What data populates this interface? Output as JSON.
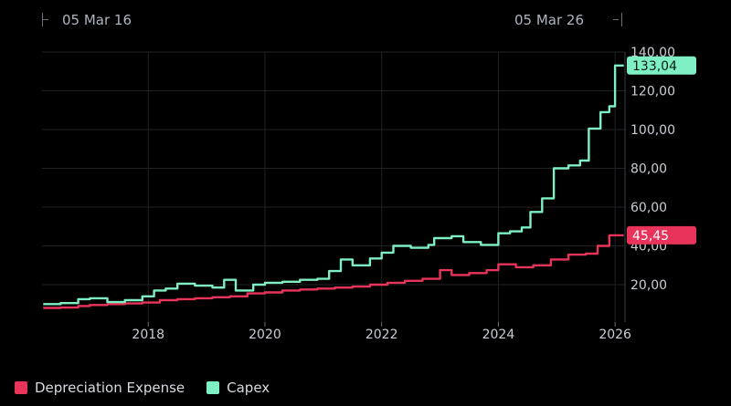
{
  "range": {
    "start_label": "05 Mar 16",
    "end_label": "05 Mar 26"
  },
  "colors": {
    "depreciation": "#e8345a",
    "capex": "#7ef0c4",
    "grid": "#1f2226",
    "axis_text": "#c9cdd4",
    "background": "#000000"
  },
  "chart_data": {
    "type": "line",
    "title": "",
    "xlabel": "",
    "ylabel": "",
    "x_ticks": [
      "2018",
      "2020",
      "2022",
      "2024",
      "2026"
    ],
    "y_ticks": [
      "20,00",
      "40,00",
      "60,00",
      "80,00",
      "100,00",
      "120,00",
      "140,00"
    ],
    "ylim": [
      0,
      140
    ],
    "xlim": [
      2016.18,
      2026.17
    ],
    "grid": true,
    "legend_position": "bottom-left",
    "series": [
      {
        "name": "Depreciation Expense",
        "last_label": "45,45",
        "points": [
          [
            2016.2,
            8.0
          ],
          [
            2016.5,
            8.2
          ],
          [
            2016.8,
            9.0
          ],
          [
            2017.0,
            9.5
          ],
          [
            2017.3,
            10.0
          ],
          [
            2017.6,
            10.3
          ],
          [
            2017.9,
            10.8
          ],
          [
            2018.2,
            12.0
          ],
          [
            2018.5,
            12.5
          ],
          [
            2018.8,
            13.0
          ],
          [
            2019.1,
            13.5
          ],
          [
            2019.4,
            14.0
          ],
          [
            2019.7,
            15.5
          ],
          [
            2020.0,
            16.0
          ],
          [
            2020.3,
            17.0
          ],
          [
            2020.6,
            17.5
          ],
          [
            2020.9,
            18.0
          ],
          [
            2021.2,
            18.5
          ],
          [
            2021.5,
            19.0
          ],
          [
            2021.8,
            20.0
          ],
          [
            2022.1,
            21.0
          ],
          [
            2022.4,
            22.0
          ],
          [
            2022.7,
            23.0
          ],
          [
            2023.0,
            27.5
          ],
          [
            2023.2,
            25.0
          ],
          [
            2023.5,
            26.0
          ],
          [
            2023.8,
            27.5
          ],
          [
            2024.0,
            30.5
          ],
          [
            2024.3,
            29.0
          ],
          [
            2024.6,
            30.0
          ],
          [
            2024.9,
            33.0
          ],
          [
            2025.2,
            35.5
          ],
          [
            2025.5,
            36.0
          ],
          [
            2025.7,
            40.0
          ],
          [
            2025.9,
            45.45
          ],
          [
            2026.15,
            45.45
          ]
        ]
      },
      {
        "name": "Capex",
        "last_label": "133,04",
        "points": [
          [
            2016.2,
            10.0
          ],
          [
            2016.5,
            10.5
          ],
          [
            2016.8,
            12.5
          ],
          [
            2017.0,
            13.0
          ],
          [
            2017.3,
            11.0
          ],
          [
            2017.6,
            12.0
          ],
          [
            2017.9,
            14.0
          ],
          [
            2018.1,
            17.0
          ],
          [
            2018.3,
            18.0
          ],
          [
            2018.5,
            20.5
          ],
          [
            2018.8,
            19.5
          ],
          [
            2019.1,
            18.5
          ],
          [
            2019.3,
            22.5
          ],
          [
            2019.5,
            17.0
          ],
          [
            2019.8,
            20.0
          ],
          [
            2020.0,
            21.0
          ],
          [
            2020.3,
            21.5
          ],
          [
            2020.6,
            22.5
          ],
          [
            2020.9,
            23.0
          ],
          [
            2021.1,
            27.0
          ],
          [
            2021.3,
            33.0
          ],
          [
            2021.5,
            30.0
          ],
          [
            2021.8,
            33.5
          ],
          [
            2022.0,
            36.5
          ],
          [
            2022.2,
            40.0
          ],
          [
            2022.5,
            39.0
          ],
          [
            2022.8,
            40.5
          ],
          [
            2022.9,
            44.0
          ],
          [
            2023.2,
            45.0
          ],
          [
            2023.4,
            42.0
          ],
          [
            2023.7,
            40.5
          ],
          [
            2024.0,
            46.5
          ],
          [
            2024.2,
            47.5
          ],
          [
            2024.4,
            49.5
          ],
          [
            2024.55,
            57.5
          ],
          [
            2024.75,
            64.5
          ],
          [
            2024.95,
            80.0
          ],
          [
            2025.2,
            81.5
          ],
          [
            2025.4,
            84.0
          ],
          [
            2025.55,
            100.5
          ],
          [
            2025.75,
            109.0
          ],
          [
            2025.9,
            112.0
          ],
          [
            2026.0,
            133.04
          ],
          [
            2026.15,
            133.04
          ]
        ]
      }
    ]
  }
}
